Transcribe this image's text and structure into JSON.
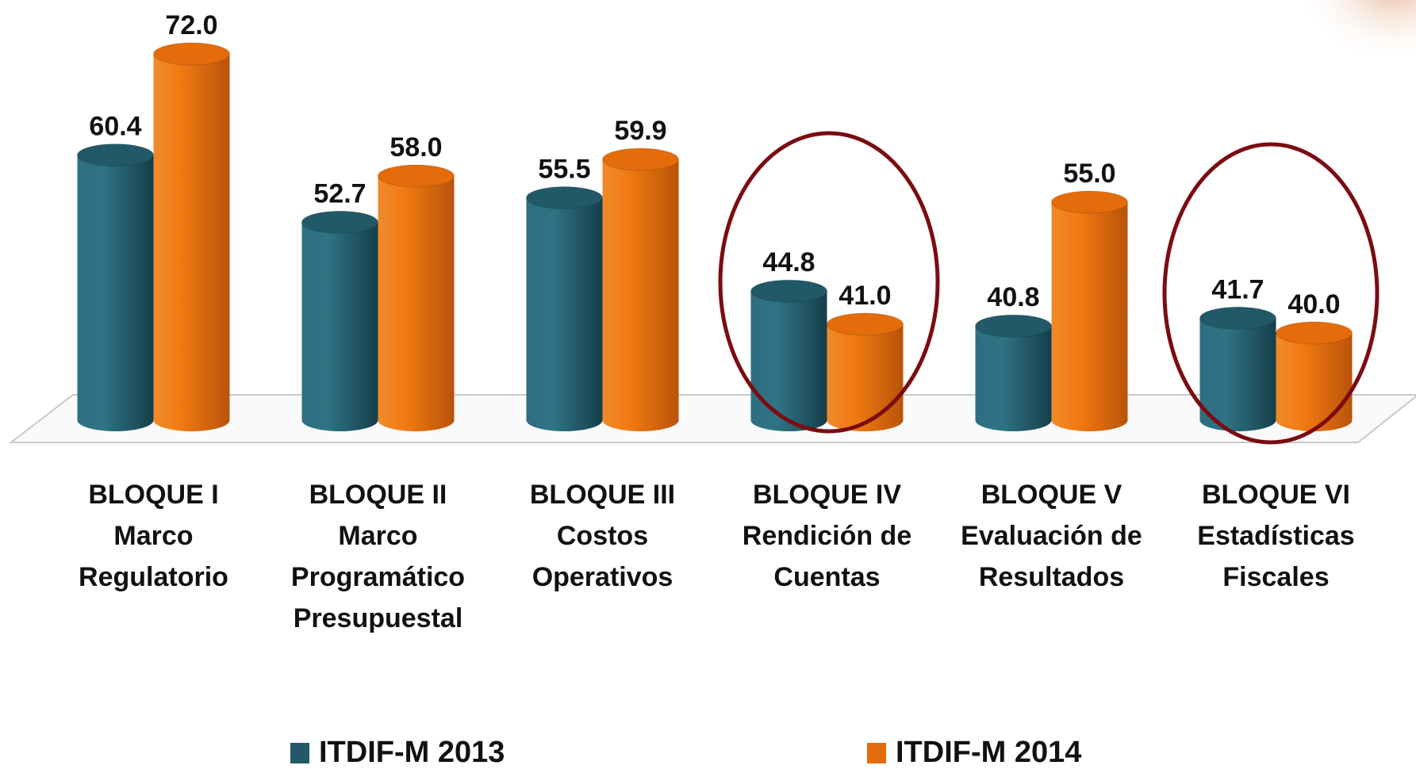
{
  "chart_data": {
    "type": "bar",
    "categories": [
      [
        "BLOQUE I",
        "Marco",
        "Regulatorio"
      ],
      [
        "BLOQUE II",
        "Marco",
        "Programático",
        "Presupuestal"
      ],
      [
        "BLOQUE III",
        "Costos",
        "Operativos"
      ],
      [
        "BLOQUE IV",
        "Rendición de",
        "Cuentas"
      ],
      [
        "BLOQUE V",
        "Evaluación de",
        "Resultados"
      ],
      [
        "BLOQUE VI",
        "Estadísticas",
        "Fiscales"
      ]
    ],
    "series": [
      {
        "name": "ITDIF-M 2013",
        "color": "#215968",
        "values": [
          60.4,
          52.7,
          55.5,
          44.8,
          40.8,
          41.7
        ],
        "value_labels": [
          "60.4",
          "52.7",
          "55.5",
          "44.8",
          "40.8",
          "41.7"
        ]
      },
      {
        "name": "ITDIF-M 2014",
        "color": "#e46c0a",
        "values": [
          72,
          58,
          59.9,
          41,
          55,
          40
        ],
        "value_labels": [
          "72.0",
          "58.0",
          "59.9",
          "41.0",
          "55.0",
          "40.0"
        ]
      }
    ],
    "ylim": [
      30,
      75
    ]
  }
}
